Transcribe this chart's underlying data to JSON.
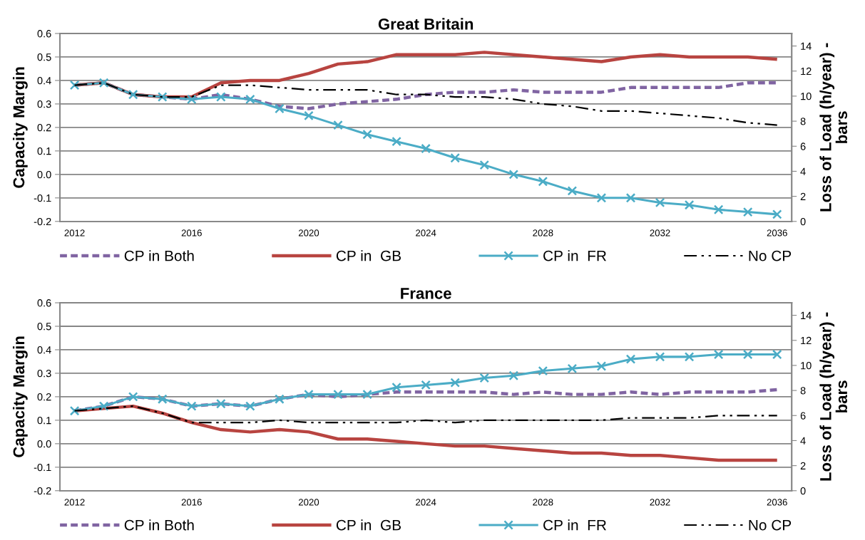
{
  "chart_data": [
    {
      "type": "line",
      "title": "Great Britain",
      "ylabel": "Capacity Margin",
      "y2label": "Loss of Load (h/year) - bars",
      "x": [
        2012,
        2013,
        2014,
        2015,
        2016,
        2017,
        2018,
        2019,
        2020,
        2021,
        2022,
        2023,
        2024,
        2025,
        2026,
        2027,
        2028,
        2029,
        2030,
        2031,
        2032,
        2033,
        2034,
        2035,
        2036
      ],
      "xlim": [
        2011.5,
        2036.5
      ],
      "xticks": [
        2012,
        2016,
        2020,
        2024,
        2028,
        2032,
        2036
      ],
      "ylim": [
        -0.2,
        0.6
      ],
      "yticks": [
        -0.2,
        -0.1,
        {
          "value": 0,
          "label": "0.0"
        },
        0.1,
        0.2,
        0.3,
        0.4,
        0.5,
        0.6
      ],
      "y2lim": [
        0,
        15
      ],
      "y2ticks": [
        0,
        2,
        4,
        6,
        8,
        10,
        12,
        14
      ],
      "grid": "y",
      "legend": "bottom",
      "series": [
        {
          "name": "CP in Both",
          "color": "#8064a2",
          "line_style": "dashed",
          "marker": "none",
          "values": [
            0.38,
            0.39,
            0.34,
            0.33,
            0.32,
            0.34,
            0.32,
            0.29,
            0.28,
            0.3,
            0.31,
            0.32,
            0.34,
            0.35,
            0.35,
            0.36,
            0.35,
            0.35,
            0.35,
            0.37,
            0.37,
            0.37,
            0.37,
            0.39,
            0.39
          ]
        },
        {
          "name": "CP in  GB",
          "color": "#b84440",
          "line_style": "solid",
          "marker": "none",
          "values": [
            0.38,
            0.39,
            0.34,
            0.33,
            0.33,
            0.39,
            0.4,
            0.4,
            0.43,
            0.47,
            0.48,
            0.51,
            0.51,
            0.51,
            0.52,
            0.51,
            0.5,
            0.49,
            0.48,
            0.5,
            0.51,
            0.5,
            0.5,
            0.5,
            0.49
          ]
        },
        {
          "name": "CP in  FR",
          "color": "#4bacc6",
          "line_style": "solid",
          "marker": "cross",
          "values": [
            0.38,
            0.39,
            0.34,
            0.33,
            0.32,
            0.33,
            0.32,
            0.28,
            0.25,
            0.21,
            0.17,
            0.14,
            0.11,
            0.07,
            0.04,
            0.0,
            -0.03,
            -0.07,
            -0.1,
            -0.1,
            -0.12,
            -0.13,
            -0.15,
            -0.16,
            -0.17
          ]
        },
        {
          "name": "No CP",
          "color": "#000000",
          "line_style": "dashdot",
          "marker": "none",
          "values": [
            0.38,
            0.39,
            0.34,
            0.33,
            0.33,
            0.38,
            0.38,
            0.37,
            0.36,
            0.36,
            0.36,
            0.34,
            0.34,
            0.33,
            0.33,
            0.32,
            0.3,
            0.29,
            0.27,
            0.27,
            0.26,
            0.25,
            0.24,
            0.22,
            0.21
          ]
        }
      ]
    },
    {
      "type": "line",
      "title": "France",
      "ylabel": "Capacity Margin",
      "y2label": "Loss of Load (h/year) - bars",
      "x": [
        2012,
        2013,
        2014,
        2015,
        2016,
        2017,
        2018,
        2019,
        2020,
        2021,
        2022,
        2023,
        2024,
        2025,
        2026,
        2027,
        2028,
        2029,
        2030,
        2031,
        2032,
        2033,
        2034,
        2035,
        2036
      ],
      "xlim": [
        2011.5,
        2036.5
      ],
      "xticks": [
        2012,
        2016,
        2020,
        2024,
        2028,
        2032,
        2036
      ],
      "ylim": [
        -0.2,
        0.6
      ],
      "yticks": [
        -0.2,
        -0.1,
        {
          "value": 0,
          "label": "0.0"
        },
        0.1,
        0.2,
        0.3,
        0.4,
        0.5,
        0.6
      ],
      "y2lim": [
        0,
        15
      ],
      "y2ticks": [
        0,
        2,
        4,
        6,
        8,
        10,
        12,
        14
      ],
      "grid": "y",
      "legend": "bottom",
      "series": [
        {
          "name": "CP in Both",
          "color": "#8064a2",
          "line_style": "dashed",
          "marker": "none",
          "values": [
            0.14,
            0.16,
            0.2,
            0.19,
            0.16,
            0.17,
            0.16,
            0.19,
            0.21,
            0.2,
            0.21,
            0.22,
            0.22,
            0.22,
            0.22,
            0.21,
            0.22,
            0.21,
            0.21,
            0.22,
            0.21,
            0.22,
            0.22,
            0.22,
            0.23
          ]
        },
        {
          "name": "CP in  GB",
          "color": "#b84440",
          "line_style": "solid",
          "marker": "none",
          "values": [
            0.14,
            0.15,
            0.16,
            0.13,
            0.09,
            0.06,
            0.05,
            0.06,
            0.05,
            0.02,
            0.02,
            0.01,
            0.0,
            -0.01,
            -0.01,
            -0.02,
            -0.03,
            -0.04,
            -0.04,
            -0.05,
            -0.05,
            -0.06,
            -0.07,
            -0.07,
            -0.07
          ]
        },
        {
          "name": "CP in  FR",
          "color": "#4bacc6",
          "line_style": "solid",
          "marker": "cross",
          "values": [
            0.14,
            0.16,
            0.2,
            0.19,
            0.16,
            0.17,
            0.16,
            0.19,
            0.21,
            0.21,
            0.21,
            0.24,
            0.25,
            0.26,
            0.28,
            0.29,
            0.31,
            0.32,
            0.33,
            0.36,
            0.37,
            0.37,
            0.38,
            0.38,
            0.38
          ]
        },
        {
          "name": "No CP",
          "color": "#000000",
          "line_style": "dashdot",
          "marker": "none",
          "values": [
            0.14,
            0.15,
            0.16,
            0.13,
            0.09,
            0.09,
            0.09,
            0.1,
            0.09,
            0.09,
            0.09,
            0.09,
            0.1,
            0.09,
            0.1,
            0.1,
            0.1,
            0.1,
            0.1,
            0.11,
            0.11,
            0.11,
            0.12,
            0.12,
            0.12
          ]
        }
      ]
    }
  ]
}
